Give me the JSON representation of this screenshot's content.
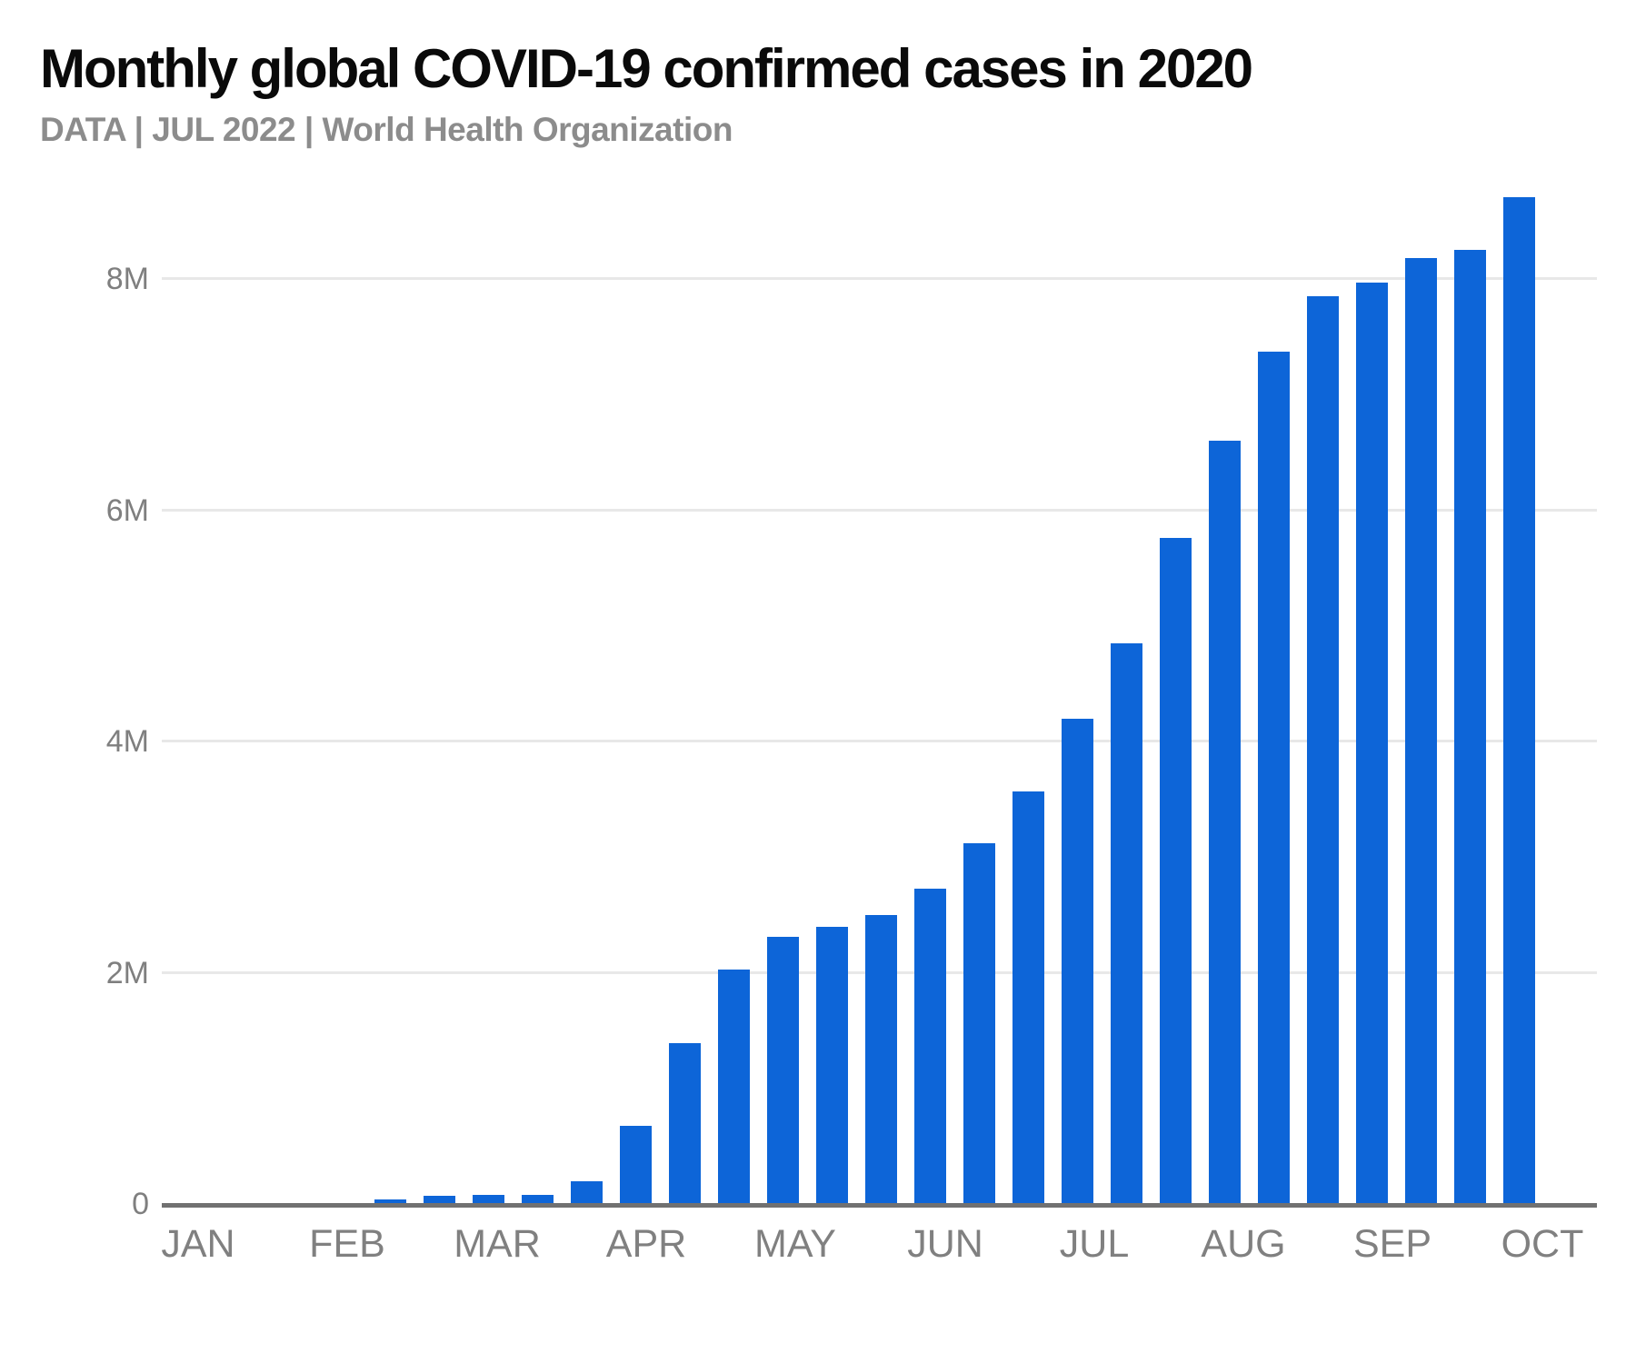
{
  "header": {
    "title": "Monthly global COVID-19 confirmed cases in 2020",
    "subtitle": "DATA | JUL 2022 | World Health Organization"
  },
  "chart_data": {
    "type": "bar",
    "title": "Monthly global COVID-19 confirmed cases in 2020",
    "subtitle": "DATA | JUL 2022 | World Health Organization",
    "source": "World Health Organization",
    "x_tick_labels": [
      "JAN",
      "FEB",
      "MAR",
      "APR",
      "MAY",
      "JUN",
      "JUL",
      "AUG",
      "SEP",
      "OCT"
    ],
    "y_tick_labels": [
      "0",
      "2M",
      "4M",
      "6M",
      "8M"
    ],
    "y_tick_values_millions": [
      0,
      2,
      4,
      6,
      8
    ],
    "ylim_millions": [
      0,
      9
    ],
    "grid": "horizontal-only",
    "legend": "none",
    "unit": "confirmed cases (millions)",
    "values_millions": [
      0.03,
      0.06,
      0.07,
      0.07,
      0.19,
      0.67,
      1.38,
      2.02,
      2.3,
      2.39,
      2.49,
      2.72,
      3.11,
      3.56,
      4.19,
      4.84,
      5.75,
      6.59,
      7.36,
      7.84,
      7.96,
      8.17,
      8.24,
      8.7
    ],
    "bars_start_after_label": "FEB",
    "bars_per_month": 3
  },
  "colors": {
    "background": "#ffffff",
    "bar": "#0d65d8",
    "title_text": "#0a0a0a",
    "subtitle_text": "#8c8c8c",
    "axis_line": "#717171",
    "gridline": "#e8e8e8",
    "y_tick_text": "#7f7f7f",
    "x_tick_text": "#808080"
  }
}
